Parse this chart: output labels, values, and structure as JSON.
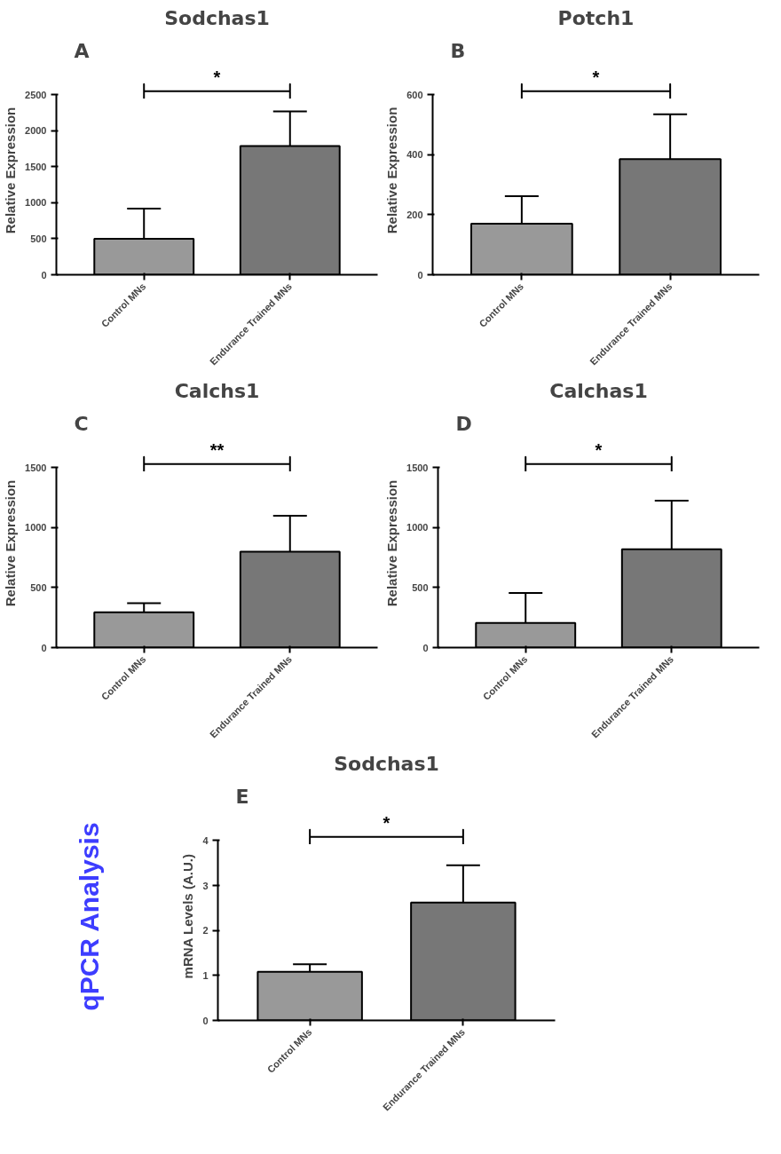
{
  "chart_data": [
    {
      "type": "bar",
      "title": "Sodchas1",
      "annotations": [
        "A",
        "*"
      ],
      "ylabel": "Relative Expression",
      "categories": [
        "Control MNs",
        "Endurance Trained MNs"
      ],
      "values": [
        500,
        1790
      ],
      "errors": [
        [
          500,
          920
        ],
        [
          1790,
          2270
        ]
      ],
      "colors": [
        "#999999",
        "#777777"
      ],
      "ylim": [
        0,
        2500
      ],
      "yticks": [
        0,
        500,
        1000,
        1500,
        2000,
        2500
      ]
    },
    {
      "type": "bar",
      "title": "Potch1",
      "annotations": [
        "B",
        "*"
      ],
      "ylabel": "Relative Expression",
      "categories": [
        "Control MNs",
        "Endurance Trained MNs"
      ],
      "values": [
        170,
        386
      ],
      "errors": [
        [
          170,
          262
        ],
        [
          386,
          535
        ]
      ],
      "colors": [
        "#999999",
        "#777777"
      ],
      "ylim": [
        0,
        600
      ],
      "yticks": [
        0,
        200,
        400,
        600
      ]
    },
    {
      "type": "bar",
      "title": "Calchs1",
      "annotations": [
        "C",
        "**"
      ],
      "ylabel": "Relative Expression",
      "categories": [
        "Control MNs",
        "Endurance Trained MNs"
      ],
      "values": [
        295,
        800
      ],
      "errors": [
        [
          295,
          370
        ],
        [
          800,
          1100
        ]
      ],
      "colors": [
        "#999999",
        "#777777"
      ],
      "ylim": [
        0,
        1500
      ],
      "yticks": [
        0,
        500,
        1000,
        1500
      ]
    },
    {
      "type": "bar",
      "title": "Calchas1",
      "annotations": [
        "D",
        "*"
      ],
      "ylabel": "Relative Expression",
      "categories": [
        "Control MNs",
        "Endurance Trained MNs"
      ],
      "values": [
        205,
        820
      ],
      "errors": [
        [
          205,
          455
        ],
        [
          820,
          1225
        ]
      ],
      "colors": [
        "#999999",
        "#777777"
      ],
      "ylim": [
        0,
        1500
      ],
      "yticks": [
        0,
        500,
        1000,
        1500
      ]
    },
    {
      "type": "other",
      "annotations": [
        "qPCR Analysis"
      ]
    },
    {
      "type": "bar",
      "title": "Sodchas1",
      "annotations": [
        "E",
        "*"
      ],
      "ylabel": "mRNA Levels (A.U.)",
      "categories": [
        "Control MNs",
        "Endurance Trained MNs"
      ],
      "values": [
        1.08,
        2.62
      ],
      "errors": [
        [
          1.08,
          1.25
        ],
        [
          2.62,
          3.45
        ]
      ],
      "colors": [
        "#999999",
        "#777777"
      ],
      "ylim": [
        0,
        4
      ],
      "yticks": [
        0,
        1,
        2,
        3,
        4
      ]
    }
  ]
}
